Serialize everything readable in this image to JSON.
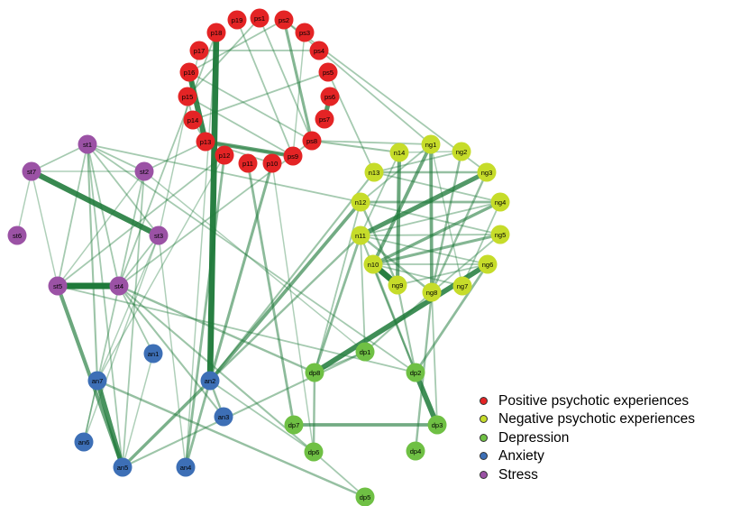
{
  "colors": {
    "psychotic_positive": "#e42425",
    "psychotic_negative": "#c6dc2a",
    "depression": "#6fc044",
    "anxiety": "#3d6fb6",
    "stress": "#9b52a5",
    "edge": "#1f7a3a"
  },
  "groups": [
    {
      "id": "positive",
      "color_key": "psychotic_positive",
      "label": "Positive psychotic experiences"
    },
    {
      "id": "negative",
      "color_key": "psychotic_negative",
      "label": "Negative psychotic experiences"
    },
    {
      "id": "depression",
      "color_key": "depression",
      "label": "Depression"
    },
    {
      "id": "anxiety",
      "color_key": "anxiety",
      "label": "Anxiety"
    },
    {
      "id": "stress",
      "color_key": "stress",
      "label": "Stress"
    }
  ],
  "nodes": [
    {
      "id": "ps1",
      "group": "positive"
    },
    {
      "id": "ps2",
      "group": "positive"
    },
    {
      "id": "ps3",
      "group": "positive"
    },
    {
      "id": "ps4",
      "group": "positive"
    },
    {
      "id": "ps5",
      "group": "positive"
    },
    {
      "id": "ps6",
      "group": "positive"
    },
    {
      "id": "ps7",
      "group": "positive"
    },
    {
      "id": "ps8",
      "group": "positive"
    },
    {
      "id": "ps9",
      "group": "positive"
    },
    {
      "id": "p10",
      "group": "positive"
    },
    {
      "id": "p11",
      "group": "positive"
    },
    {
      "id": "p12",
      "group": "positive"
    },
    {
      "id": "p13",
      "group": "positive"
    },
    {
      "id": "p14",
      "group": "positive"
    },
    {
      "id": "p15",
      "group": "positive"
    },
    {
      "id": "p16",
      "group": "positive"
    },
    {
      "id": "p17",
      "group": "positive"
    },
    {
      "id": "p18",
      "group": "positive"
    },
    {
      "id": "p19",
      "group": "positive"
    },
    {
      "id": "ng1",
      "group": "negative"
    },
    {
      "id": "ng2",
      "group": "negative"
    },
    {
      "id": "ng3",
      "group": "negative"
    },
    {
      "id": "ng4",
      "group": "negative"
    },
    {
      "id": "ng5",
      "group": "negative"
    },
    {
      "id": "ng6",
      "group": "negative"
    },
    {
      "id": "ng7",
      "group": "negative"
    },
    {
      "id": "ng8",
      "group": "negative"
    },
    {
      "id": "ng9",
      "group": "negative"
    },
    {
      "id": "n10",
      "group": "negative"
    },
    {
      "id": "n11",
      "group": "negative"
    },
    {
      "id": "n12",
      "group": "negative"
    },
    {
      "id": "n13",
      "group": "negative"
    },
    {
      "id": "n14",
      "group": "negative"
    },
    {
      "id": "dp1",
      "group": "depression"
    },
    {
      "id": "dp2",
      "group": "depression"
    },
    {
      "id": "dp3",
      "group": "depression"
    },
    {
      "id": "dp4",
      "group": "depression"
    },
    {
      "id": "dp5",
      "group": "depression"
    },
    {
      "id": "dp6",
      "group": "depression"
    },
    {
      "id": "dp7",
      "group": "depression"
    },
    {
      "id": "dp8",
      "group": "depression"
    },
    {
      "id": "an1",
      "group": "anxiety"
    },
    {
      "id": "an2",
      "group": "anxiety"
    },
    {
      "id": "an3",
      "group": "anxiety"
    },
    {
      "id": "an4",
      "group": "anxiety"
    },
    {
      "id": "an5",
      "group": "anxiety"
    },
    {
      "id": "an6",
      "group": "anxiety"
    },
    {
      "id": "an7",
      "group": "anxiety"
    },
    {
      "id": "st1",
      "group": "stress"
    },
    {
      "id": "st2",
      "group": "stress"
    },
    {
      "id": "st3",
      "group": "stress"
    },
    {
      "id": "st4",
      "group": "stress"
    },
    {
      "id": "st5",
      "group": "stress"
    },
    {
      "id": "st6",
      "group": "stress"
    },
    {
      "id": "st7",
      "group": "stress"
    }
  ],
  "edges": [
    {
      "from": "p18",
      "to": "an2",
      "weight": 0.95
    },
    {
      "from": "p13",
      "to": "p16",
      "weight": 0.85
    },
    {
      "from": "ps9",
      "to": "p13",
      "weight": 0.6
    },
    {
      "from": "ps6",
      "to": "ps7",
      "weight": 0.7
    },
    {
      "from": "st5",
      "to": "st4",
      "weight": 1.0
    },
    {
      "from": "st7",
      "to": "st3",
      "weight": 0.85
    },
    {
      "from": "n10",
      "to": "ng9",
      "weight": 0.95
    },
    {
      "from": "n11",
      "to": "ng3",
      "weight": 0.7
    },
    {
      "from": "ng6",
      "to": "dp8",
      "weight": 0.8
    },
    {
      "from": "dp2",
      "to": "dp3",
      "weight": 0.8
    },
    {
      "from": "an7",
      "to": "an5",
      "weight": 0.75
    },
    {
      "from": "st5",
      "to": "an5",
      "weight": 0.55
    },
    {
      "from": "dp7",
      "to": "dp3",
      "weight": 0.5
    },
    {
      "from": "ng1",
      "to": "ng8",
      "weight": 0.5
    },
    {
      "from": "n14",
      "to": "ng9",
      "weight": 0.55
    },
    {
      "from": "ng1",
      "to": "n10",
      "weight": 0.5
    },
    {
      "from": "ng4",
      "to": "n10",
      "weight": 0.45
    },
    {
      "from": "n10",
      "to": "ng5",
      "weight": 0.4
    },
    {
      "from": "n12",
      "to": "ng4",
      "weight": 0.35
    },
    {
      "from": "n13",
      "to": "ng3",
      "weight": 0.3
    },
    {
      "from": "ng3",
      "to": "ng8",
      "weight": 0.3
    },
    {
      "from": "ng2",
      "to": "ng8",
      "weight": 0.3
    },
    {
      "from": "n11",
      "to": "ng8",
      "weight": 0.3
    },
    {
      "from": "n12",
      "to": "ng9",
      "weight": 0.3
    },
    {
      "from": "ps2",
      "to": "ps8",
      "weight": 0.4
    },
    {
      "from": "p12",
      "to": "an4",
      "weight": 0.35
    },
    {
      "from": "p10",
      "to": "an2",
      "weight": 0.4
    },
    {
      "from": "an2",
      "to": "an5",
      "weight": 0.45
    },
    {
      "from": "an2",
      "to": "an4",
      "weight": 0.35
    },
    {
      "from": "an2",
      "to": "an3",
      "weight": 0.3
    },
    {
      "from": "an2",
      "to": "n12",
      "weight": 0.5
    },
    {
      "from": "an2",
      "to": "n11",
      "weight": 0.3
    },
    {
      "from": "p11",
      "to": "dp7",
      "weight": 0.35
    },
    {
      "from": "dp8",
      "to": "dp6",
      "weight": 0.3
    },
    {
      "from": "dp8",
      "to": "n11",
      "weight": 0.35
    },
    {
      "from": "dp1",
      "to": "ng8",
      "weight": 0.25
    },
    {
      "from": "dp2",
      "to": "n10",
      "weight": 0.3
    },
    {
      "from": "dp2",
      "to": "ng6",
      "weight": 0.35
    },
    {
      "from": "dp2",
      "to": "ng9",
      "weight": 0.25
    },
    {
      "from": "dp4",
      "to": "ng8",
      "weight": 0.3
    },
    {
      "from": "dp2",
      "to": "n11",
      "weight": 0.25
    },
    {
      "from": "an7",
      "to": "dp5",
      "weight": 0.3
    },
    {
      "from": "an5",
      "to": "dp1",
      "weight": 0.25
    },
    {
      "from": "st4",
      "to": "dp8",
      "weight": 0.3
    },
    {
      "from": "st4",
      "to": "dp6",
      "weight": 0.25
    },
    {
      "from": "st4",
      "to": "an1",
      "weight": 0.2
    },
    {
      "from": "st4",
      "to": "an6",
      "weight": 0.2
    },
    {
      "from": "st4",
      "to": "an3",
      "weight": 0.25
    },
    {
      "from": "st1",
      "to": "an7",
      "weight": 0.25
    },
    {
      "from": "st1",
      "to": "st5",
      "weight": 0.2
    },
    {
      "from": "st1",
      "to": "st3",
      "weight": 0.2
    },
    {
      "from": "st1",
      "to": "st7",
      "weight": 0.2
    },
    {
      "from": "st1",
      "to": "st2",
      "weight": 0.2
    },
    {
      "from": "st1",
      "to": "st4",
      "weight": 0.2
    },
    {
      "from": "st1",
      "to": "an5",
      "weight": 0.2
    },
    {
      "from": "st2",
      "to": "st4",
      "weight": 0.2
    },
    {
      "from": "st2",
      "to": "an5",
      "weight": 0.2
    },
    {
      "from": "st2",
      "to": "st5",
      "weight": 0.15
    },
    {
      "from": "st2",
      "to": "p13",
      "weight": 0.2
    },
    {
      "from": "st7",
      "to": "st6",
      "weight": 0.15
    },
    {
      "from": "st7",
      "to": "st5",
      "weight": 0.15
    },
    {
      "from": "st7",
      "to": "st2",
      "weight": 0.15
    },
    {
      "from": "st3",
      "to": "st4",
      "weight": 0.2
    },
    {
      "from": "st3",
      "to": "an6",
      "weight": 0.15
    },
    {
      "from": "st3",
      "to": "an4",
      "weight": 0.15
    },
    {
      "from": "st3",
      "to": "p17",
      "weight": 0.15
    },
    {
      "from": "st1",
      "to": "n12",
      "weight": 0.2
    },
    {
      "from": "st1",
      "to": "dp2",
      "weight": 0.2
    },
    {
      "from": "st4",
      "to": "ps8",
      "weight": 0.2
    },
    {
      "from": "p13",
      "to": "ps9",
      "weight": 0.2
    },
    {
      "from": "p13",
      "to": "p10",
      "weight": 0.2
    },
    {
      "from": "p13",
      "to": "p14",
      "weight": 0.25
    },
    {
      "from": "p14",
      "to": "p15",
      "weight": 0.2
    },
    {
      "from": "p15",
      "to": "ps1",
      "weight": 0.2
    },
    {
      "from": "p16",
      "to": "ps2",
      "weight": 0.2
    },
    {
      "from": "p16",
      "to": "ps8",
      "weight": 0.2
    },
    {
      "from": "p17",
      "to": "ps4",
      "weight": 0.2
    },
    {
      "from": "p14",
      "to": "ps5",
      "weight": 0.2
    },
    {
      "from": "p15",
      "to": "ps9",
      "weight": 0.2
    },
    {
      "from": "p19",
      "to": "ps9",
      "weight": 0.2
    },
    {
      "from": "ps1",
      "to": "ps8",
      "weight": 0.2
    },
    {
      "from": "ps3",
      "to": "ps9",
      "weight": 0.15
    },
    {
      "from": "ps2",
      "to": "ng1",
      "weight": 0.2
    },
    {
      "from": "ps2",
      "to": "ng3",
      "weight": 0.2
    },
    {
      "from": "ps5",
      "to": "n13",
      "weight": 0.2
    },
    {
      "from": "ps8",
      "to": "n14",
      "weight": 0.25
    },
    {
      "from": "ps8",
      "to": "ng1",
      "weight": 0.2
    },
    {
      "from": "p18",
      "to": "st4",
      "weight": 0.2
    },
    {
      "from": "p18",
      "to": "an4",
      "weight": 0.15
    },
    {
      "from": "p12",
      "to": "st5",
      "weight": 0.2
    },
    {
      "from": "p12",
      "to": "an7",
      "weight": 0.15
    },
    {
      "from": "p10",
      "to": "dp6",
      "weight": 0.15
    },
    {
      "from": "an2",
      "to": "n13",
      "weight": 0.25
    },
    {
      "from": "n13",
      "to": "ng2",
      "weight": 0.2
    },
    {
      "from": "n13",
      "to": "ng4",
      "weight": 0.2
    },
    {
      "from": "n12",
      "to": "ng1",
      "weight": 0.2
    },
    {
      "from": "n12",
      "to": "ng5",
      "weight": 0.2
    },
    {
      "from": "n11",
      "to": "ng4",
      "weight": 0.2
    },
    {
      "from": "n11",
      "to": "ng5",
      "weight": 0.2
    },
    {
      "from": "n11",
      "to": "ng6",
      "weight": 0.2
    },
    {
      "from": "n10",
      "to": "ng6",
      "weight": 0.2
    },
    {
      "from": "n10",
      "to": "ng7",
      "weight": 0.2
    },
    {
      "from": "ng9",
      "to": "ng6",
      "weight": 0.2
    },
    {
      "from": "ng8",
      "to": "ng5",
      "weight": 0.2
    },
    {
      "from": "ng7",
      "to": "ng4",
      "weight": 0.2
    },
    {
      "from": "n14",
      "to": "ng2",
      "weight": 0.15
    },
    {
      "from": "n14",
      "to": "n11",
      "weight": 0.2
    },
    {
      "from": "ng1",
      "to": "ng7",
      "weight": 0.15
    },
    {
      "from": "dp1",
      "to": "dp8",
      "weight": 0.2
    },
    {
      "from": "dp1",
      "to": "n11",
      "weight": 0.2
    },
    {
      "from": "dp8",
      "to": "n12",
      "weight": 0.2
    },
    {
      "from": "dp6",
      "to": "dp5",
      "weight": 0.2
    },
    {
      "from": "dp6",
      "to": "an2",
      "weight": 0.2
    },
    {
      "from": "dp3",
      "to": "ng8",
      "weight": 0.2
    },
    {
      "from": "an7",
      "to": "an6",
      "weight": 0.15
    },
    {
      "from": "an7",
      "to": "st3",
      "weight": 0.15
    },
    {
      "from": "an1",
      "to": "an5",
      "weight": 0.15
    },
    {
      "from": "st5",
      "to": "dp2",
      "weight": 0.2
    },
    {
      "from": "st2",
      "to": "dp1",
      "weight": 0.15
    }
  ]
}
